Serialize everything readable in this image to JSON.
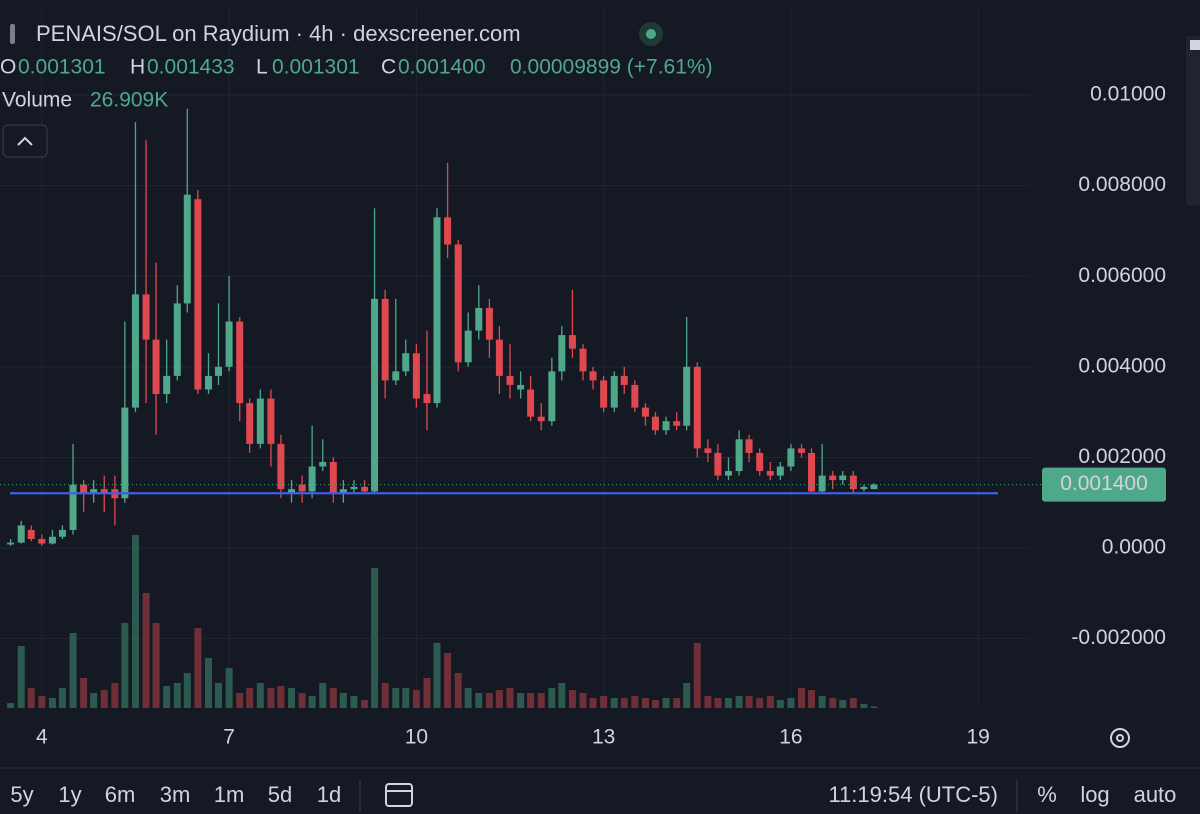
{
  "header": {
    "title": "PENAIS/SOL on Raydium · 4h · dexscreener.com",
    "ohlc": [
      {
        "key": "O",
        "value": "0.001301"
      },
      {
        "key": "H",
        "value": "0.001433"
      },
      {
        "key": "L",
        "value": "0.001301"
      },
      {
        "key": "C",
        "value": "0.001400"
      }
    ],
    "change": "0.00009899 (+7.61%)",
    "volume_label": "Volume",
    "volume_value": "26.909K"
  },
  "chart_data": {
    "type": "candlestick",
    "x": [
      3.5,
      3.67,
      3.83,
      4,
      4.17,
      4.33,
      4.5,
      4.67,
      4.83,
      5,
      5.17,
      5.33,
      5.5,
      5.67,
      5.83,
      6,
      6.17,
      6.33,
      6.5,
      6.67,
      6.83,
      7,
      7.17,
      7.33,
      7.5,
      7.67,
      7.83,
      8,
      8.17,
      8.33,
      8.5,
      8.67,
      8.83,
      9,
      9.17,
      9.33,
      9.5,
      9.67,
      9.83,
      10,
      10.17,
      10.33,
      10.5,
      10.67,
      10.83,
      11,
      11.17,
      11.33,
      11.5,
      11.67,
      11.83,
      12,
      12.17,
      12.33,
      12.5,
      12.67,
      12.83,
      13,
      13.17,
      13.33,
      13.5,
      13.67,
      13.83,
      14,
      14.17,
      14.33,
      14.5,
      14.67,
      14.83,
      15,
      15.17,
      15.33,
      15.5,
      15.67,
      15.83,
      16,
      16.17,
      16.33,
      16.5,
      16.67,
      16.83,
      17,
      17.17,
      17.33
    ],
    "open": [
      8e-05,
      0.00012,
      0.0004,
      0.0002,
      0.0001,
      0.00025,
      0.0004,
      0.0014,
      0.0012,
      0.0013,
      0.0013,
      0.0011,
      0.0031,
      0.0056,
      0.0046,
      0.0034,
      0.0038,
      0.0054,
      0.0077,
      0.0035,
      0.0038,
      0.004,
      0.005,
      0.0032,
      0.0023,
      0.0033,
      0.0023,
      0.0012,
      0.0014,
      0.00125,
      0.0018,
      0.0019,
      0.0012,
      0.0013,
      0.00135,
      0.00125,
      0.0055,
      0.0037,
      0.0039,
      0.0043,
      0.0034,
      0.0032,
      0.0073,
      0.0067,
      0.0041,
      0.0048,
      0.0053,
      0.0046,
      0.0038,
      0.0035,
      0.0035,
      0.0029,
      0.0028,
      0.0039,
      0.0047,
      0.0044,
      0.0039,
      0.0037,
      0.0031,
      0.0038,
      0.0036,
      0.0031,
      0.0029,
      0.0026,
      0.0028,
      0.0027,
      0.004,
      0.0022,
      0.0021,
      0.0016,
      0.0017,
      0.0024,
      0.0021,
      0.0017,
      0.0016,
      0.0018,
      0.0022,
      0.0021,
      0.00125,
      0.0016,
      0.0015,
      0.0016,
      0.0013,
      0.001301
    ],
    "high": [
      0.0002,
      0.0006,
      0.0005,
      0.0003,
      0.0004,
      0.0005,
      0.0023,
      0.0015,
      0.0015,
      0.0016,
      0.0016,
      0.005,
      0.0094,
      0.009,
      0.0063,
      0.0046,
      0.0058,
      0.0097,
      0.0079,
      0.0043,
      0.0054,
      0.006,
      0.0051,
      0.0033,
      0.0035,
      0.0035,
      0.0025,
      0.0015,
      0.0016,
      0.0027,
      0.0024,
      0.002,
      0.0015,
      0.0015,
      0.0015,
      0.0075,
      0.0057,
      0.0055,
      0.0046,
      0.0045,
      0.0048,
      0.0075,
      0.0085,
      0.0068,
      0.0052,
      0.0058,
      0.0055,
      0.0049,
      0.0045,
      0.0039,
      0.0038,
      0.0032,
      0.0042,
      0.0049,
      0.0057,
      0.0045,
      0.004,
      0.0038,
      0.0039,
      0.004,
      0.0037,
      0.0032,
      0.003,
      0.0029,
      0.003,
      0.0051,
      0.0041,
      0.0024,
      0.0023,
      0.002,
      0.0026,
      0.0025,
      0.0022,
      0.0019,
      0.0019,
      0.0023,
      0.0023,
      0.0022,
      0.0023,
      0.0017,
      0.0017,
      0.0017,
      0.0014,
      0.001433
    ],
    "low": [
      5e-05,
      0.0001,
      0.00015,
      5e-05,
      8e-05,
      0.0002,
      0.0003,
      0.0008,
      0.001,
      0.0008,
      0.0005,
      0.001,
      0.003,
      0.0032,
      0.0025,
      0.0032,
      0.0037,
      0.0052,
      0.0034,
      0.0034,
      0.0036,
      0.0039,
      0.0028,
      0.0021,
      0.0022,
      0.0018,
      0.0011,
      0.001,
      0.001,
      0.0011,
      0.0017,
      0.001,
      0.001,
      0.0012,
      0.0012,
      0.0012,
      0.0033,
      0.0036,
      0.0038,
      0.0031,
      0.0026,
      0.0031,
      0.0064,
      0.0039,
      0.004,
      0.0046,
      0.0042,
      0.0034,
      0.0033,
      0.0033,
      0.0028,
      0.0026,
      0.0027,
      0.0037,
      0.0042,
      0.0037,
      0.0035,
      0.003,
      0.003,
      0.0034,
      0.003,
      0.0027,
      0.0025,
      0.0025,
      0.0026,
      0.0026,
      0.002,
      0.0019,
      0.0015,
      0.0015,
      0.0016,
      0.0019,
      0.0016,
      0.0015,
      0.0015,
      0.0017,
      0.002,
      0.0012,
      0.0012,
      0.0013,
      0.0014,
      0.0012,
      0.00125,
      0.001301
    ],
    "close": [
      0.00012,
      0.0005,
      0.0002,
      0.0001,
      0.00025,
      0.0004,
      0.0014,
      0.0012,
      0.0013,
      0.0012,
      0.0011,
      0.0031,
      0.0056,
      0.0046,
      0.0034,
      0.0038,
      0.0054,
      0.0078,
      0.0035,
      0.0038,
      0.004,
      0.005,
      0.0032,
      0.0023,
      0.0033,
      0.0023,
      0.0013,
      0.0013,
      0.00125,
      0.0018,
      0.0019,
      0.0012,
      0.0013,
      0.00135,
      0.00125,
      0.0055,
      0.0037,
      0.0039,
      0.0043,
      0.0033,
      0.0032,
      0.0073,
      0.0067,
      0.0041,
      0.0048,
      0.0053,
      0.0046,
      0.0038,
      0.0036,
      0.0036,
      0.0029,
      0.0028,
      0.0039,
      0.0047,
      0.0044,
      0.0039,
      0.0037,
      0.0031,
      0.0038,
      0.0036,
      0.0031,
      0.0029,
      0.0026,
      0.0028,
      0.0027,
      0.004,
      0.0022,
      0.0021,
      0.0016,
      0.0017,
      0.0024,
      0.0021,
      0.0017,
      0.0016,
      0.0018,
      0.0022,
      0.0021,
      0.00125,
      0.0016,
      0.0015,
      0.0016,
      0.0013,
      0.00135,
      0.0014
    ],
    "volume": [
      90000,
      1116000,
      360000,
      216000,
      180000,
      360000,
      1350000,
      540000,
      270000,
      324000,
      450000,
      1530000,
      3114000,
      2070000,
      1530000,
      396000,
      450000,
      630000,
      1440000,
      900000,
      450000,
      720000,
      270000,
      360000,
      450000,
      360000,
      396000,
      360000,
      270000,
      216000,
      450000,
      360000,
      270000,
      216000,
      144000,
      2520000,
      450000,
      360000,
      360000,
      324000,
      540000,
      1170000,
      990000,
      630000,
      360000,
      270000,
      270000,
      324000,
      360000,
      270000,
      270000,
      270000,
      360000,
      450000,
      324000,
      270000,
      180000,
      216000,
      180000,
      180000,
      216000,
      180000,
      144000,
      180000,
      180000,
      450000,
      1170000,
      216000,
      180000,
      180000,
      216000,
      216000,
      180000,
      216000,
      144000,
      180000,
      360000,
      324000,
      216000,
      180000,
      144000,
      180000,
      72000,
      26909
    ],
    "xlim": [
      3.33,
      19.83
    ],
    "xticks": [
      4,
      7,
      10,
      13,
      16,
      19
    ],
    "ylim": [
      -0.00353,
      0.01192
    ],
    "yticks": [
      {
        "value": 0.01,
        "label": "0.01000"
      },
      {
        "value": 0.008,
        "label": "0.008000"
      },
      {
        "value": 0.006,
        "label": "0.006000"
      },
      {
        "value": 0.004,
        "label": "0.004000"
      },
      {
        "value": 0.002,
        "label": "0.002000"
      },
      {
        "value": 0,
        "label": "0.0000"
      },
      {
        "value": -0.002,
        "label": "-0.002000"
      }
    ],
    "vlim": [
      0,
      3240000
    ],
    "grid": true,
    "up_color": "#4fa88a",
    "down_color": "#e0484f",
    "volume_up_color": "#2d5a4f",
    "volume_down_color": "#6e3036",
    "support_line": {
      "value": 0.00121,
      "color": "#3e5fe0"
    },
    "last_price": {
      "value": 0.0014,
      "label": "0.001400",
      "color": "#4fa88a"
    }
  },
  "toolbar": {
    "ranges": [
      "5y",
      "1y",
      "6m",
      "3m",
      "1m",
      "5d",
      "1d"
    ],
    "time": "11:19:54 (UTC-5)",
    "options": [
      "%",
      "log",
      "auto"
    ]
  }
}
